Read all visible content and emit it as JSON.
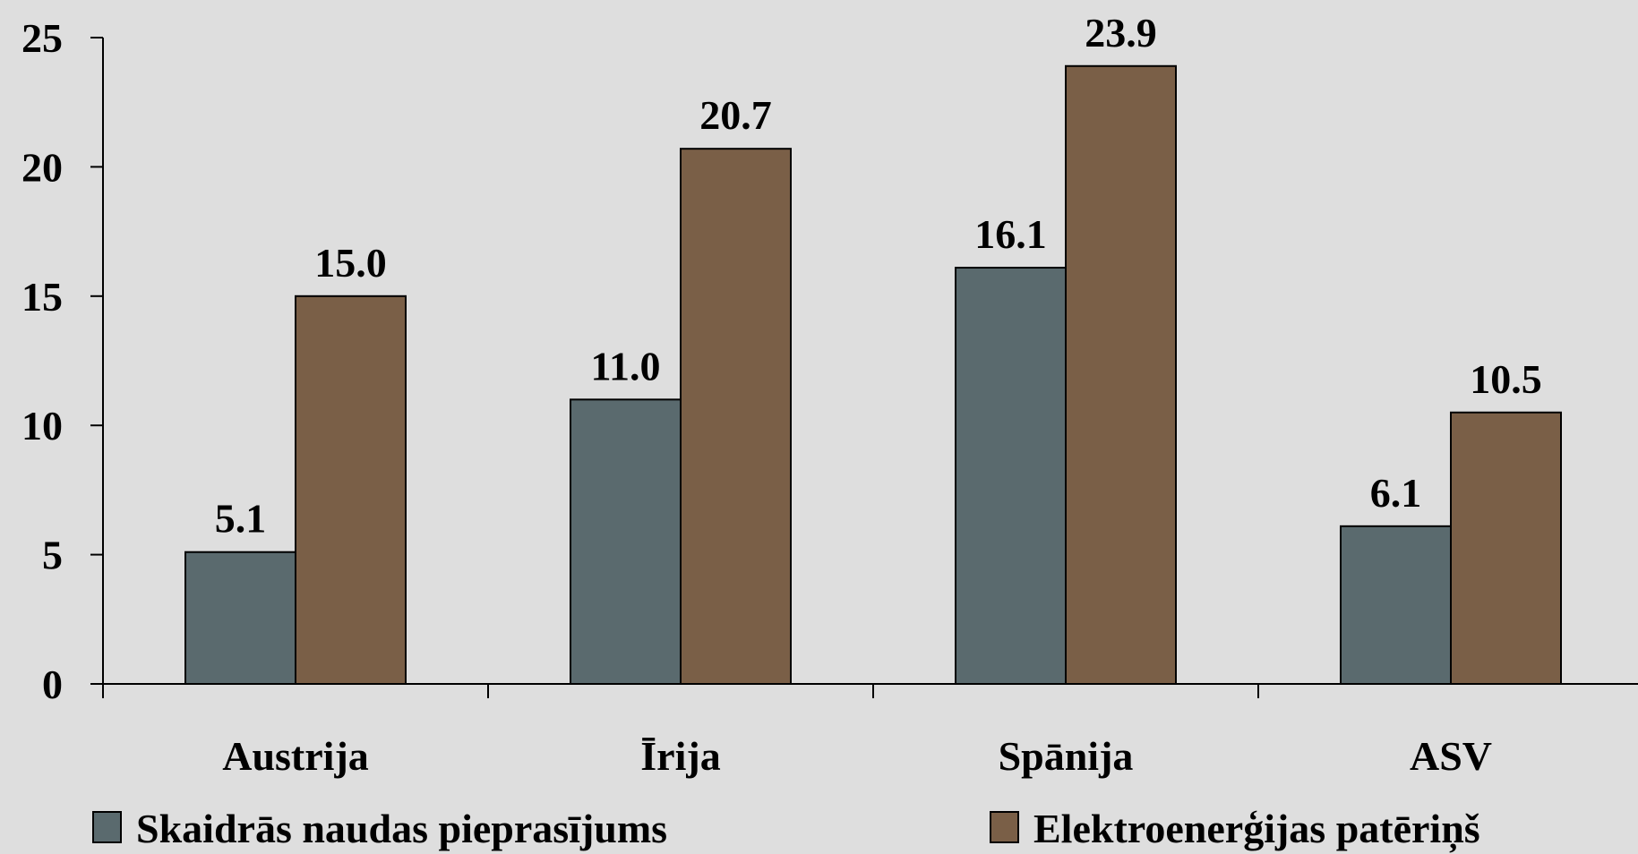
{
  "chart_data": {
    "type": "bar",
    "categories": [
      "Austrija",
      "Īrija",
      "Spānija",
      "ASV"
    ],
    "series": [
      {
        "name": "Skaidrās naudas pieprasījums",
        "color": "#5a6a6e",
        "values": [
          5.1,
          11.0,
          16.1,
          6.1
        ],
        "labels": [
          "5.1",
          "11.0",
          "16.1",
          "6.1"
        ]
      },
      {
        "name": "Elektroenerģijas patēriņš",
        "color": "#7a5f47",
        "values": [
          15.0,
          20.7,
          23.9,
          10.5
        ],
        "labels": [
          "15.0",
          "20.7",
          "23.9",
          "10.5"
        ]
      }
    ],
    "ylim": [
      0,
      25
    ],
    "yticks": [
      0,
      5,
      10,
      15,
      20,
      25
    ],
    "title": "",
    "xlabel": "",
    "ylabel": "",
    "grid": false,
    "legend_position": "bottom",
    "background": "#dedede"
  }
}
